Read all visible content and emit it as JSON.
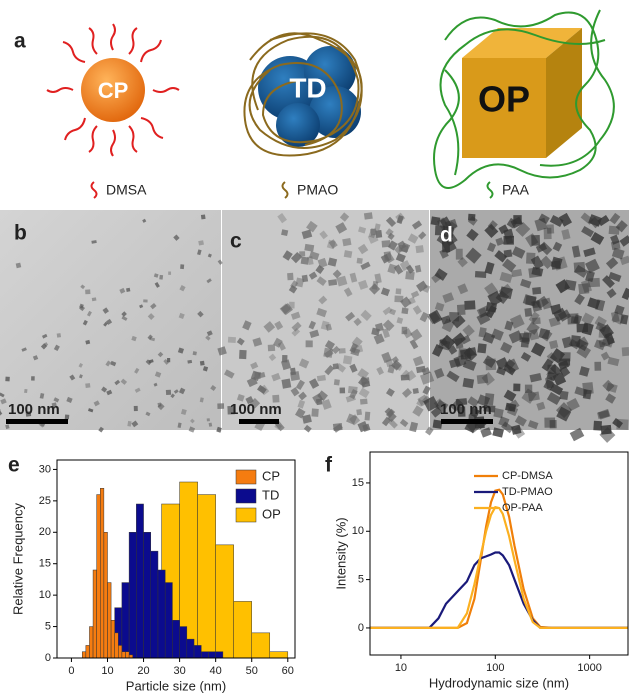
{
  "panel_letters": [
    "a",
    "b",
    "c",
    "d",
    "e",
    "f"
  ],
  "particles": [
    "CP",
    "TD",
    "OP"
  ],
  "coatings": [
    "DMSA",
    "PMAO",
    "PAA"
  ],
  "scale_bars": [
    "100 nm",
    "100 nm",
    "100 nm"
  ],
  "chart_data": [
    {
      "type": "histogram",
      "x_label": "Particle size (nm)",
      "y_label": "Relative Frequency",
      "xlim": [
        -4,
        62
      ],
      "ylim": [
        0,
        31.5
      ],
      "xticks": [
        0,
        10,
        20,
        30,
        40,
        50,
        60
      ],
      "yticks": [
        0,
        5,
        10,
        15,
        20,
        25,
        30
      ],
      "series": [
        {
          "name": "CP",
          "color": "#f57c10",
          "bins": [
            3,
            4,
            5,
            6,
            7,
            8,
            9,
            10,
            11,
            12,
            13,
            14,
            15,
            16,
            17
          ],
          "values": [
            1,
            2,
            5,
            14,
            26,
            27,
            20,
            12,
            6,
            4,
            2,
            1,
            1,
            0.5
          ]
        },
        {
          "name": "TD",
          "color": "#0b0b8e",
          "bins": [
            8,
            10,
            12,
            14,
            16,
            18,
            20,
            22,
            24,
            26,
            28,
            30,
            32,
            34,
            36,
            38,
            40,
            42
          ],
          "values": [
            1,
            3,
            8,
            12,
            20,
            24.5,
            20,
            17,
            14,
            12,
            6,
            5,
            3,
            2,
            1,
            1,
            1
          ]
        },
        {
          "name": "OP",
          "color": "#ffc000",
          "bins": [
            20,
            25,
            30,
            35,
            40,
            45,
            50,
            55,
            60
          ],
          "values": [
            13,
            24.5,
            28,
            26,
            18,
            9,
            4,
            1
          ]
        }
      ]
    },
    {
      "type": "line",
      "x_label": "Hydrodynamic size (nm)",
      "y_label": "Intensity (%)",
      "log_x": true,
      "xlim": [
        4.7,
        2550
      ],
      "ylim": [
        -2.8,
        18.2
      ],
      "xticks": [
        10,
        100,
        1000
      ],
      "yticks": [
        0,
        5,
        10,
        15
      ],
      "x": [
        4.7,
        10,
        20,
        25,
        30,
        40,
        50,
        60,
        70,
        80,
        90,
        100,
        110,
        120,
        140,
        160,
        200,
        250,
        300,
        400,
        1000,
        2550
      ],
      "series": [
        {
          "name": "CP-DMSA",
          "color": "#f07f09",
          "values": [
            0,
            0,
            0,
            0,
            0,
            0,
            0.5,
            3,
            7,
            10.5,
            13,
            14.2,
            14.3,
            13.8,
            11.5,
            8.5,
            4,
            1,
            0.1,
            0,
            0,
            0
          ]
        },
        {
          "name": "TD-PMAO",
          "color": "#1a1a7a",
          "values": [
            0,
            0,
            0,
            1,
            2.5,
            3.8,
            4.8,
            6.5,
            7.2,
            7.4,
            7.6,
            7.8,
            7.8,
            7.5,
            6.5,
            5,
            2.5,
            0.8,
            0,
            0,
            0,
            0
          ]
        },
        {
          "name": "OP-PAA",
          "color": "#fbb020",
          "values": [
            0,
            0,
            0,
            0,
            0,
            0,
            1.5,
            4.5,
            7.5,
            10,
            11.7,
            12.5,
            12.4,
            11.8,
            9.5,
            7,
            3,
            0.6,
            0,
            0,
            0,
            0
          ]
        }
      ]
    }
  ]
}
